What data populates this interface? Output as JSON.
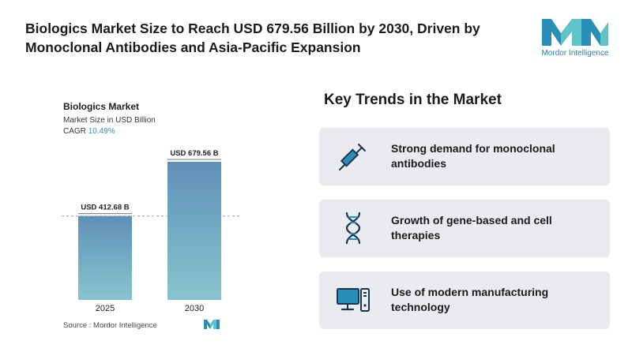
{
  "headline": "Biologics Market Size to Reach USD 679.56 Billion by 2030, Driven by Monoclonal Antibodies and Asia-Pacific Expansion",
  "logo": {
    "text": "Mordor Intelligence",
    "color": "#2a8fb8",
    "accent": "#5ec4c9"
  },
  "chart": {
    "title": "Biologics Market",
    "subtitle": "Market Size in USD Billion",
    "cagr_label": "CAGR",
    "cagr_value": "10.49%"
  },
  "chart_data": {
    "type": "bar",
    "categories": [
      "2025",
      "2030"
    ],
    "values": [
      412.68,
      679.56
    ],
    "data_labels": [
      "USD 412.68 B",
      "USD 679.56 B"
    ],
    "title": "Biologics Market",
    "ylabel": "Market Size in USD Billion",
    "ylim": [
      0,
      700
    ],
    "grid": false,
    "bar_gradient": [
      "#5f90b8",
      "#88c4cd"
    ]
  },
  "source": {
    "label": "Source :",
    "value": "Mordor Intelligence"
  },
  "trends": {
    "title": "Key Trends in the Market",
    "items": [
      {
        "icon": "syringe-icon",
        "label": "Strong demand for monoclonal antibodies"
      },
      {
        "icon": "dna-icon",
        "label": "Growth of gene-based and cell therapies"
      },
      {
        "icon": "computer-icon",
        "label": "Use of modern manufacturing technology"
      }
    ]
  }
}
